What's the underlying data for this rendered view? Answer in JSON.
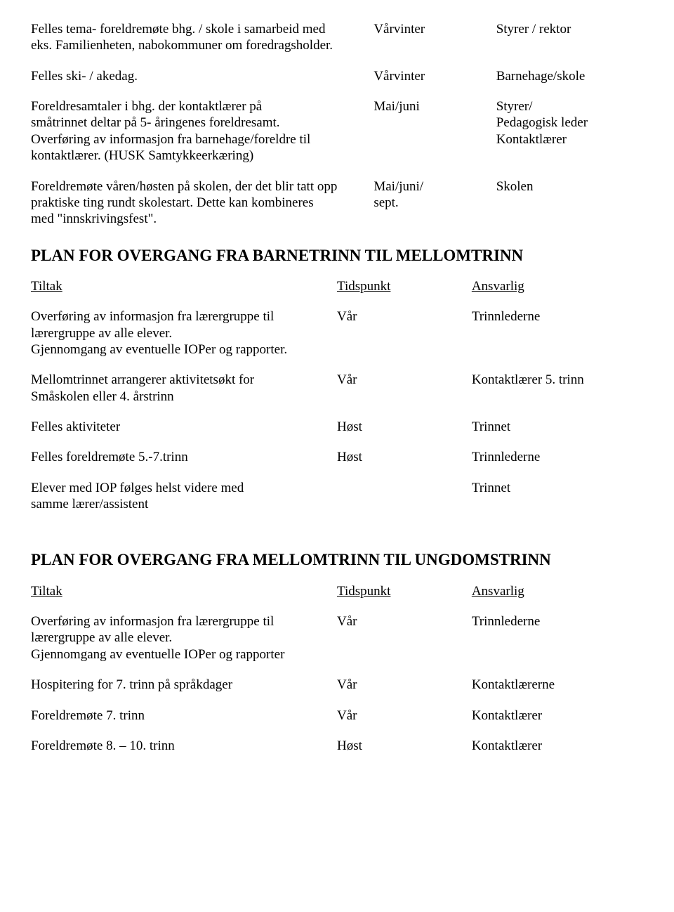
{
  "top": {
    "r1": {
      "c1": "Felles tema- foreldremøte bhg. / skole i samarbeid med",
      "c2": "Vårvinter",
      "c3": "Styrer / rektor"
    },
    "r2": {
      "c1": "eks. Familienheten, nabokommuner om foredragsholder."
    },
    "r3": {
      "c1": "Felles ski- / akedag.",
      "c2": "Vårvinter",
      "c3": "Barnehage/skole"
    },
    "r4": {
      "c1": "Foreldresamtaler i bhg. der kontaktlærer på",
      "c2": "Mai/juni",
      "c3": "Styrer/"
    },
    "r5": {
      "c1": "småtrinnet deltar på 5- åringenes foreldresamt.",
      "c3": "Pedagogisk leder"
    },
    "r6": {
      "c1": "Overføring av informasjon fra barnehage/foreldre til",
      "c3": "Kontaktlærer"
    },
    "r7": {
      "c1": "kontaktlærer. (HUSK Samtykkeerkæring)"
    },
    "r8": {
      "c1": "Foreldremøte  våren/høsten på skolen, der det blir tatt opp",
      "c2": "Mai/juni/",
      "c3": "Skolen"
    },
    "r9": {
      "c1": "praktiske ting rundt skolestart. Dette kan kombineres",
      "c2": "sept."
    },
    "r10": {
      "c1": "med \"innskrivingsfest\"."
    }
  },
  "section2": {
    "heading": "PLAN FOR OVERGANG FRA BARNETRINN TIL MELLOMTRINN",
    "header": {
      "c1": "Tiltak",
      "c2": "Tidspunkt",
      "c3": "Ansvarlig"
    },
    "r1": {
      "c1": "Overføring av informasjon fra  lærergruppe til",
      "c2": "Vår",
      "c3": "Trinnlederne"
    },
    "r2": {
      "c1": "lærergruppe av alle elever."
    },
    "r3": {
      "c1": "Gjennomgang av eventuelle IOPer og rapporter."
    },
    "r4": {
      "c1": "Mellomtrinnet arrangerer aktivitetsøkt for",
      "c2": "Vår",
      "c3": "Kontaktlærer 5. trinn"
    },
    "r5": {
      "c1": "Småskolen eller 4. årstrinn"
    },
    "r6": {
      "c1": "Felles aktiviteter",
      "c2": "Høst",
      "c3": "Trinnet"
    },
    "r7": {
      "c1": "Felles  foreldremøte 5.-7.trinn",
      "c2": "Høst",
      "c3": "Trinnlederne"
    },
    "r8": {
      "c1": "Elever med IOP følges helst videre med",
      "c3": "Trinnet"
    },
    "r9": {
      "c1": "samme lærer/assistent"
    }
  },
  "section3": {
    "heading": "PLAN FOR OVERGANG FRA  MELLOMTRINN TIL UNGDOMSTRINN",
    "header": {
      "c1": "Tiltak",
      "c2": "Tidspunkt",
      "c3": "Ansvarlig"
    },
    "r1": {
      "c1": "Overføring av informasjon fra  lærergruppe til",
      "c2": "Vår",
      "c3": "Trinnlederne"
    },
    "r2": {
      "c1": " lærergruppe av alle elever."
    },
    "r3": {
      "c1": "Gjennomgang av eventuelle IOPer og rapporter"
    },
    "r4": {
      "c1": " Hospitering for 7. trinn på språkdager",
      "c2": "Vår",
      "c3": "Kontaktlærerne"
    },
    "r5": {
      "c1": " Foreldremøte 7. trinn",
      "c2": "Vår",
      "c3": "Kontaktlærer"
    },
    "r6": {
      "c1": "Foreldremøte 8. – 10. trinn",
      "c2": "Høst",
      "c3": "Kontaktlærer"
    }
  }
}
